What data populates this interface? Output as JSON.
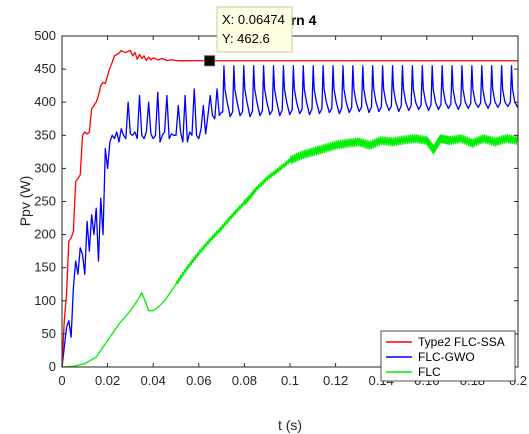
{
  "chart_data": {
    "type": "line",
    "title": "ttern 4",
    "xlabel": "t (s)",
    "ylabel": "Ppv (W)",
    "xlim": [
      0,
      0.2
    ],
    "ylim": [
      0,
      500
    ],
    "xticks": [
      0,
      0.02,
      0.04,
      0.06,
      0.08,
      0.1,
      0.12,
      0.14,
      0.16,
      0.18,
      0.2
    ],
    "xtick_labels": [
      "0",
      "0.02",
      "0.04",
      "0.06",
      "0.08",
      "0.1",
      "0.12",
      "0.14",
      "0.16",
      "0.18",
      "0.2"
    ],
    "yticks": [
      0,
      50,
      100,
      150,
      200,
      250,
      300,
      350,
      400,
      450,
      500
    ],
    "ytick_labels": [
      "0",
      "50",
      "100",
      "150",
      "200",
      "250",
      "300",
      "350",
      "400",
      "450",
      "500"
    ],
    "grid": false,
    "legend_position": "bottom-right",
    "series": [
      {
        "name": "Type2 FLC-SSA",
        "color": "#ff0000",
        "x": [
          0,
          0.001,
          0.002,
          0.003,
          0.004,
          0.005,
          0.006,
          0.007,
          0.008,
          0.009,
          0.01,
          0.011,
          0.012,
          0.013,
          0.014,
          0.015,
          0.016,
          0.017,
          0.018,
          0.019,
          0.02,
          0.021,
          0.022,
          0.023,
          0.024,
          0.025,
          0.026,
          0.027,
          0.028,
          0.029,
          0.03,
          0.031,
          0.032,
          0.033,
          0.034,
          0.035,
          0.036,
          0.037,
          0.038,
          0.039,
          0.04,
          0.042,
          0.044,
          0.046,
          0.048,
          0.05,
          0.053,
          0.056,
          0.06,
          0.0647,
          0.07,
          0.08,
          0.1,
          0.12,
          0.14,
          0.16,
          0.18,
          0.2
        ],
        "y": [
          0,
          70,
          110,
          190,
          195,
          205,
          280,
          285,
          290,
          350,
          355,
          352,
          355,
          390,
          395,
          400,
          410,
          425,
          430,
          428,
          440,
          452,
          460,
          470,
          472,
          474,
          478,
          476,
          475,
          477,
          478,
          470,
          475,
          465,
          472,
          466,
          470,
          463,
          468,
          464,
          467,
          464,
          466,
          463,
          464,
          463,
          462.5,
          462.8,
          462.6,
          462.6,
          462.6,
          462.6,
          462.6,
          462.6,
          462.6,
          462.6,
          462.6,
          462.6
        ]
      },
      {
        "name": "FLC-GWO",
        "color": "#0000ff",
        "x": [
          0,
          0.001,
          0.002,
          0.003,
          0.004,
          0.005,
          0.006,
          0.007,
          0.008,
          0.009,
          0.01,
          0.011,
          0.012,
          0.013,
          0.014,
          0.015,
          0.016,
          0.017,
          0.018,
          0.019,
          0.02,
          0.021,
          0.022,
          0.023,
          0.024,
          0.025,
          0.026,
          0.027,
          0.028,
          0.029,
          0.03,
          0.031,
          0.032,
          0.033,
          0.034,
          0.035,
          0.036,
          0.037,
          0.038,
          0.039,
          0.04,
          0.041,
          0.042,
          0.043,
          0.044,
          0.045,
          0.046,
          0.047,
          0.048,
          0.049,
          0.05,
          0.051,
          0.052,
          0.053,
          0.054,
          0.055,
          0.056,
          0.057,
          0.058,
          0.059,
          0.06,
          0.061,
          0.062,
          0.063,
          0.064,
          0.065,
          0.066,
          0.067,
          0.068,
          0.069,
          0.07
        ],
        "y": [
          0,
          30,
          60,
          70,
          45,
          120,
          160,
          140,
          180,
          170,
          140,
          220,
          175,
          230,
          200,
          240,
          160,
          255,
          200,
          330,
          300,
          340,
          350,
          345,
          355,
          340,
          360,
          350,
          345,
          400,
          352,
          350,
          355,
          345,
          410,
          350,
          345,
          355,
          400,
          352,
          345,
          350,
          415,
          340,
          350,
          355,
          410,
          345,
          352,
          350,
          350,
          395,
          355,
          340,
          410,
          340,
          355,
          350,
          420,
          350,
          345,
          360,
          395,
          352,
          380,
          410,
          380,
          375,
          420,
          380,
          385
        ]
      },
      {
        "name": "FLC",
        "color": "#00ee00",
        "x": [
          0,
          0.005,
          0.01,
          0.015,
          0.02,
          0.025,
          0.03,
          0.033,
          0.035,
          0.037,
          0.038,
          0.04,
          0.042,
          0.045,
          0.05,
          0.055,
          0.06,
          0.065,
          0.07,
          0.075,
          0.08,
          0.082,
          0.085,
          0.09,
          0.095,
          0.1,
          0.105,
          0.11,
          0.115,
          0.12,
          0.125,
          0.13,
          0.135,
          0.14,
          0.145,
          0.15,
          0.155,
          0.16,
          0.163,
          0.166,
          0.17,
          0.175,
          0.18,
          0.185,
          0.19,
          0.195,
          0.2
        ],
        "y": [
          0,
          1,
          5,
          15,
          40,
          65,
          85,
          100,
          112,
          95,
          85,
          85,
          90,
          100,
          125,
          150,
          172,
          192,
          210,
          230,
          248,
          255,
          268,
          285,
          298,
          312,
          320,
          325,
          330,
          335,
          338,
          340,
          335,
          342,
          340,
          343,
          345,
          342,
          328,
          345,
          342,
          345,
          338,
          345,
          340,
          345,
          342
        ]
      }
    ],
    "datatip": {
      "x_label": "X: 0.06474",
      "y_label": "Y: 462.6",
      "x": 0.06474,
      "y": 462.6
    }
  }
}
